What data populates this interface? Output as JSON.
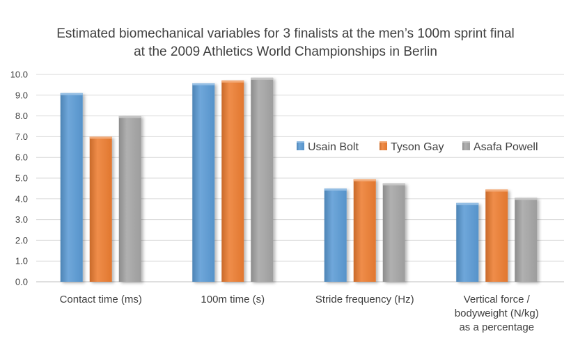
{
  "chart_data": {
    "type": "bar",
    "title": "Estimated biomechanical variables for 3 finalists at the men’s 100m sprint final",
    "subtitle": "at the 2009 Athletics World Championships in Berlin",
    "categories": [
      [
        "Contact time (ms)"
      ],
      [
        "100m time (s)"
      ],
      [
        "Stride frequency (Hz)"
      ],
      [
        "Vertical force /",
        "bodyweight (N/kg)",
        "as a percentage"
      ]
    ],
    "series": [
      {
        "name": "Usain Bolt",
        "color": "#5b9bd5",
        "values": [
          9.1,
          9.58,
          4.5,
          3.8
        ]
      },
      {
        "name": "Tyson Gay",
        "color": "#ed7d31",
        "values": [
          7.0,
          9.71,
          4.95,
          4.45
        ]
      },
      {
        "name": "Asafa Powell",
        "color": "#a5a5a5",
        "values": [
          8.0,
          9.84,
          4.75,
          4.05
        ]
      }
    ],
    "ylim": [
      0,
      10
    ],
    "yticks": [
      "0.0",
      "1.0",
      "2.0",
      "3.0",
      "4.0",
      "5.0",
      "6.0",
      "7.0",
      "8.0",
      "9.0",
      "10.0"
    ],
    "grid": true,
    "legend_position": "right"
  }
}
